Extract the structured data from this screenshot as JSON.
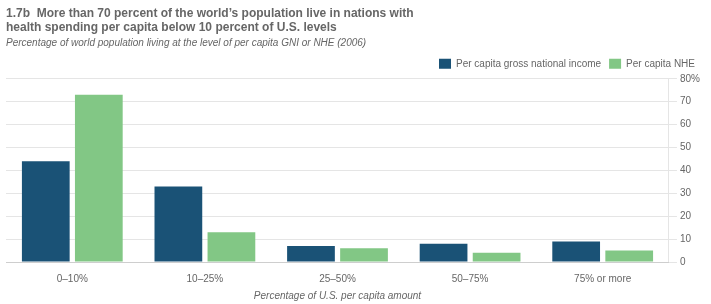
{
  "chart_data": {
    "type": "bar",
    "title": "1.7b  More than 70 percent of the world’s population live in nations with\nhealth spending per capita below 10 percent of U.S. levels",
    "subtitle": "Percentage of world population living at the level of per capita GNI or NHE (2006)",
    "xlabel": "Percentage of U.S. per capita amount",
    "categories": [
      "0–10%",
      "10–25%",
      "25–50%",
      "50–75%",
      "75% or more"
    ],
    "series": [
      {
        "name": "Per capita gross national income",
        "color": "#1a5276",
        "values": [
          44,
          33,
          7,
          8,
          9
        ]
      },
      {
        "name": "Per capita NHE",
        "color": "#82c785",
        "values": [
          73,
          13,
          6,
          4,
          5
        ]
      }
    ],
    "ylim": [
      0,
      80
    ],
    "yticks": [
      0,
      10,
      20,
      30,
      40,
      50,
      60,
      70,
      {
        "value": 80,
        "label": "80%"
      }
    ],
    "grid": true,
    "legend": "upper right"
  }
}
